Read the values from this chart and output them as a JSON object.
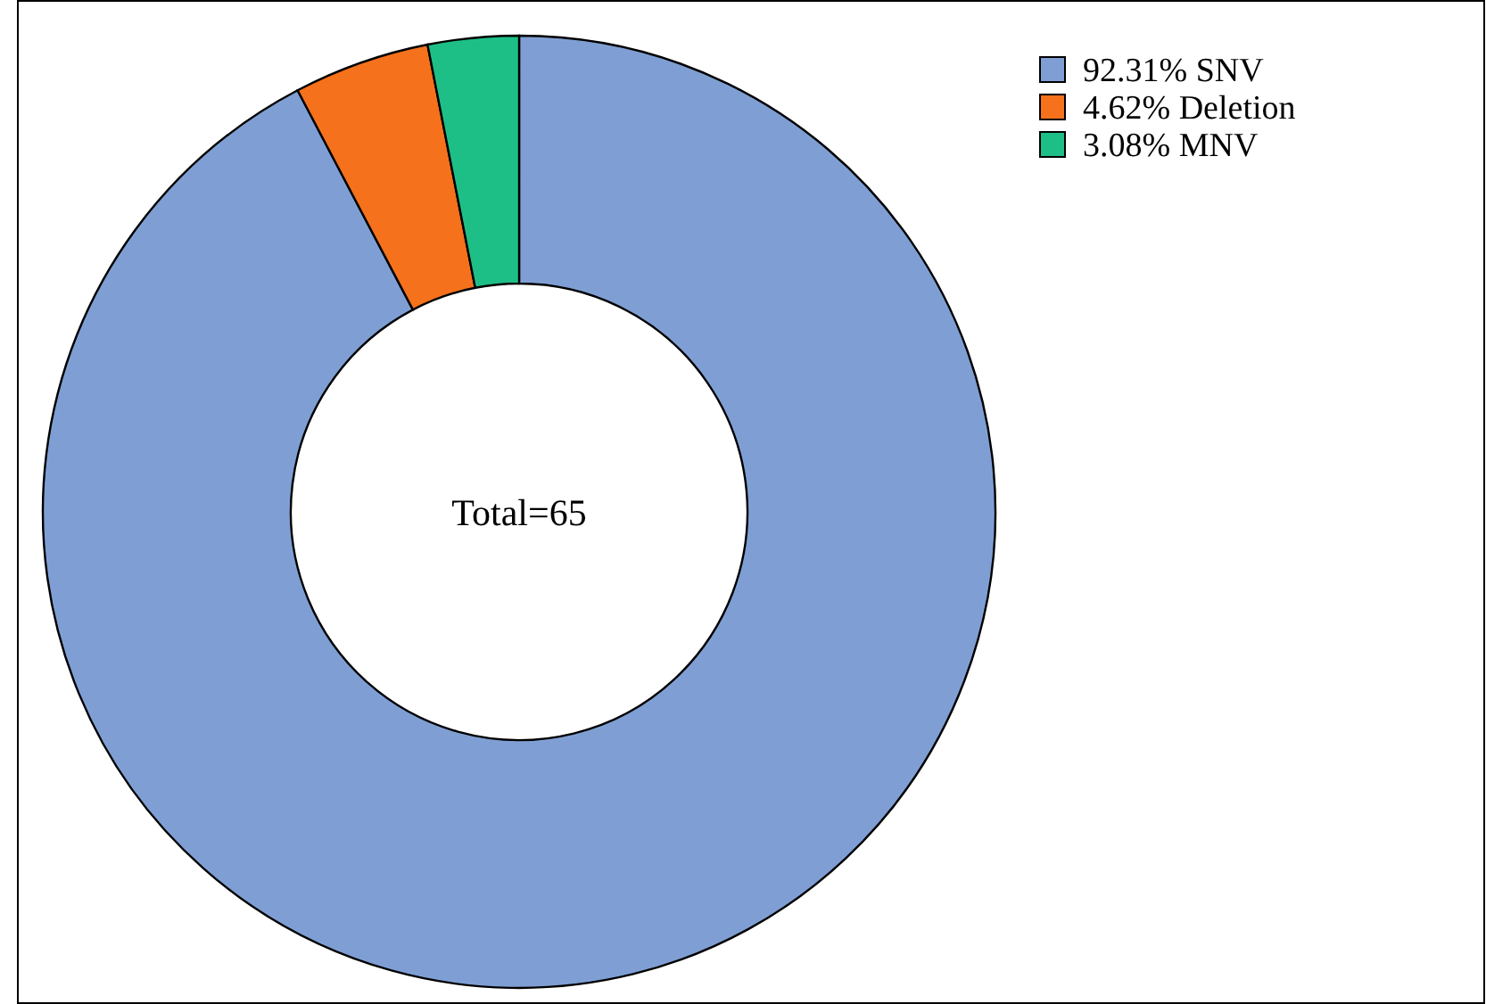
{
  "chart_data": {
    "type": "donut",
    "categories": [
      "92.31% SNV",
      "4.62% Deletion",
      "3.08% MNV"
    ],
    "values": [
      92.31,
      4.62,
      3.08
    ],
    "colors": [
      "#7f9fd4",
      "#f5711c",
      "#1ebf87"
    ],
    "annotations": [
      "Total=65"
    ],
    "legend": "top right"
  }
}
